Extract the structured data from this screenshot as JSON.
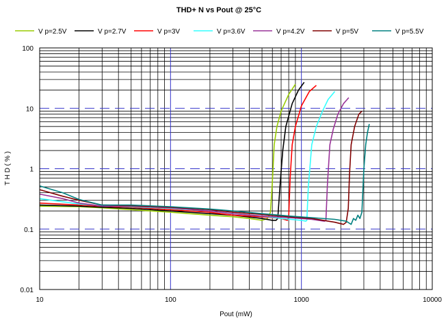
{
  "chart_data": {
    "type": "line",
    "title": "THD+ N  vs  Pout  @   25°C",
    "xlabel": "Pout (mW)",
    "ylabel": "T H D  ( % )",
    "x_scale": "log",
    "y_scale": "log",
    "xlim": [
      10,
      10000
    ],
    "ylim": [
      0.01,
      100
    ],
    "x_ticks": [
      {
        "value": 10,
        "label": "10"
      },
      {
        "value": 100,
        "label": "100"
      },
      {
        "value": 1000,
        "label": "1000"
      },
      {
        "value": 10000,
        "label": "10000"
      }
    ],
    "y_ticks": [
      {
        "value": 0.01,
        "label": "0.01"
      },
      {
        "value": 0.1,
        "label": "0.1"
      },
      {
        "value": 1,
        "label": "1"
      },
      {
        "value": 10,
        "label": "10"
      },
      {
        "value": 100,
        "label": "100"
      }
    ],
    "grid": true,
    "legend_position": "top",
    "series": [
      {
        "name": "V p=2.5V",
        "color": "#99CC00",
        "points": [
          [
            10,
            0.24
          ],
          [
            20,
            0.235
          ],
          [
            30,
            0.225
          ],
          [
            50,
            0.21
          ],
          [
            100,
            0.19
          ],
          [
            200,
            0.17
          ],
          [
            300,
            0.16
          ],
          [
            400,
            0.15
          ],
          [
            500,
            0.14
          ],
          [
            550,
            0.15
          ],
          [
            580,
            0.19
          ],
          [
            600,
            0.6
          ],
          [
            620,
            2.5
          ],
          [
            650,
            5
          ],
          [
            700,
            9
          ],
          [
            800,
            17
          ],
          [
            900,
            25
          ]
        ]
      },
      {
        "name": "V p=2.7V",
        "color": "#000000",
        "points": [
          [
            10,
            0.25
          ],
          [
            20,
            0.24
          ],
          [
            30,
            0.23
          ],
          [
            50,
            0.22
          ],
          [
            100,
            0.2
          ],
          [
            200,
            0.18
          ],
          [
            300,
            0.17
          ],
          [
            500,
            0.15
          ],
          [
            600,
            0.14
          ],
          [
            640,
            0.14
          ],
          [
            660,
            0.15
          ],
          [
            690,
            0.6
          ],
          [
            720,
            2
          ],
          [
            760,
            5
          ],
          [
            850,
            12
          ],
          [
            950,
            20
          ],
          [
            1050,
            27
          ]
        ]
      },
      {
        "name": "V p=3V",
        "color": "#FF0000",
        "points": [
          [
            10,
            0.27
          ],
          [
            20,
            0.25
          ],
          [
            30,
            0.24
          ],
          [
            50,
            0.23
          ],
          [
            100,
            0.21
          ],
          [
            200,
            0.19
          ],
          [
            300,
            0.17
          ],
          [
            500,
            0.16
          ],
          [
            700,
            0.15
          ],
          [
            780,
            0.14
          ],
          [
            800,
            0.16
          ],
          [
            820,
            0.7
          ],
          [
            850,
            2.5
          ],
          [
            900,
            5
          ],
          [
            1000,
            11
          ],
          [
            1150,
            19
          ],
          [
            1300,
            24
          ]
        ]
      },
      {
        "name": "V p=3.6V",
        "color": "#33FFFF",
        "points": [
          [
            10,
            0.32
          ],
          [
            20,
            0.26
          ],
          [
            30,
            0.245
          ],
          [
            50,
            0.235
          ],
          [
            100,
            0.22
          ],
          [
            200,
            0.2
          ],
          [
            300,
            0.18
          ],
          [
            500,
            0.165
          ],
          [
            700,
            0.15
          ],
          [
            1000,
            0.14
          ],
          [
            1080,
            0.135
          ],
          [
            1100,
            0.14
          ],
          [
            1130,
            0.5
          ],
          [
            1200,
            2.5
          ],
          [
            1300,
            5
          ],
          [
            1450,
            9
          ],
          [
            1600,
            14
          ],
          [
            1800,
            19
          ]
        ]
      },
      {
        "name": "V p=4.2V",
        "color": "#993399",
        "points": [
          [
            10,
            0.38
          ],
          [
            15,
            0.32
          ],
          [
            20,
            0.27
          ],
          [
            30,
            0.24
          ],
          [
            50,
            0.24
          ],
          [
            100,
            0.225
          ],
          [
            200,
            0.2
          ],
          [
            300,
            0.18
          ],
          [
            500,
            0.165
          ],
          [
            800,
            0.155
          ],
          [
            1200,
            0.145
          ],
          [
            1500,
            0.135
          ],
          [
            1540,
            0.14
          ],
          [
            1580,
            0.55
          ],
          [
            1650,
            2.5
          ],
          [
            1750,
            4.5
          ],
          [
            1900,
            8
          ],
          [
            2100,
            12
          ],
          [
            2300,
            15
          ]
        ]
      },
      {
        "name": "V p=5V",
        "color": "#800000",
        "points": [
          [
            10,
            0.45
          ],
          [
            15,
            0.35
          ],
          [
            20,
            0.3
          ],
          [
            30,
            0.25
          ],
          [
            50,
            0.245
          ],
          [
            100,
            0.23
          ],
          [
            200,
            0.21
          ],
          [
            300,
            0.19
          ],
          [
            500,
            0.175
          ],
          [
            800,
            0.16
          ],
          [
            1200,
            0.15
          ],
          [
            1800,
            0.13
          ],
          [
            2100,
            0.12
          ],
          [
            2200,
            0.13
          ],
          [
            2280,
            0.22
          ],
          [
            2330,
            0.8
          ],
          [
            2400,
            2.5
          ],
          [
            2550,
            5
          ],
          [
            2750,
            8
          ],
          [
            2900,
            9
          ]
        ]
      },
      {
        "name": "V p=5.5V",
        "color": "#008080",
        "points": [
          [
            10,
            0.52
          ],
          [
            15,
            0.4
          ],
          [
            20,
            0.31
          ],
          [
            30,
            0.25
          ],
          [
            50,
            0.25
          ],
          [
            100,
            0.235
          ],
          [
            200,
            0.215
          ],
          [
            300,
            0.2
          ],
          [
            500,
            0.18
          ],
          [
            800,
            0.165
          ],
          [
            1200,
            0.155
          ],
          [
            1800,
            0.145
          ],
          [
            2200,
            0.135
          ],
          [
            2400,
            0.12
          ],
          [
            2500,
            0.15
          ],
          [
            2600,
            0.14
          ],
          [
            2700,
            0.17
          ],
          [
            2800,
            0.15
          ],
          [
            2900,
            0.19
          ],
          [
            3000,
            1.0
          ],
          [
            3100,
            2.5
          ],
          [
            3200,
            4
          ],
          [
            3300,
            5.5
          ]
        ]
      }
    ]
  }
}
